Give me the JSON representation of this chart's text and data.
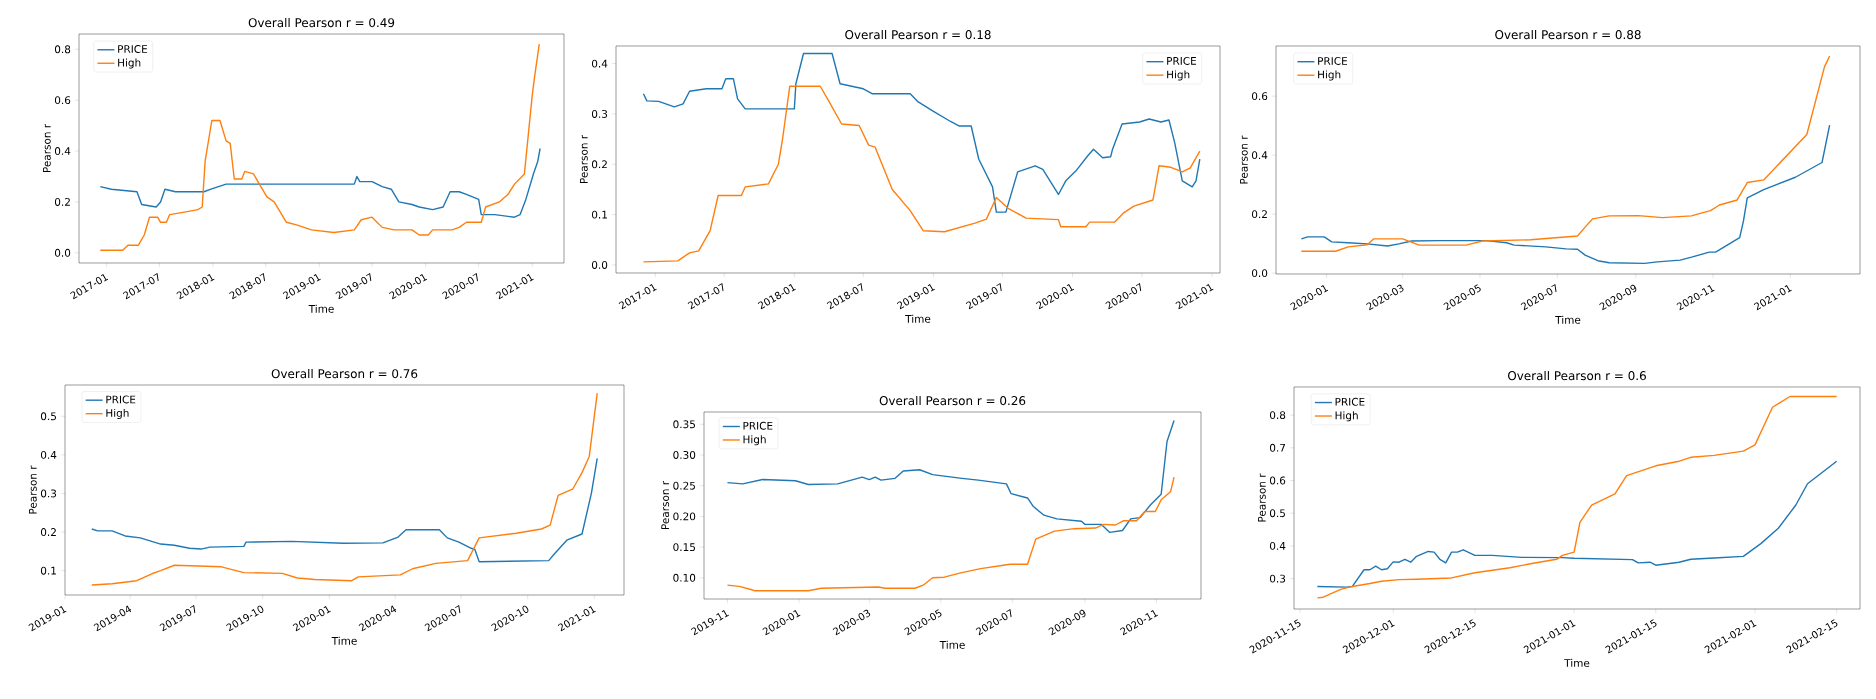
{
  "chart_data": [
    {
      "type": "line",
      "title": "Overall Pearson r = 0.49",
      "xlabel": "Time",
      "ylabel": "Pearson r",
      "legend": "top left",
      "xlim": [
        "2016-09-28",
        "2021-04-20"
      ],
      "ylim": [
        -0.04,
        0.86
      ],
      "xticks": [
        "2017-01",
        "2017-07",
        "2018-01",
        "2018-07",
        "2019-01",
        "2019-07",
        "2020-01",
        "2020-07",
        "2021-01"
      ],
      "yticks": [
        {
          "value": 0,
          "label": "0.0"
        },
        0.2,
        0.4,
        0.6,
        0.8
      ],
      "series": [
        {
          "name": "PRICE",
          "color": "#1f77b4",
          "x": [
            "2016-12-10",
            "2017-01-17",
            "2017-04-15",
            "2017-05-01",
            "2017-06-20",
            "2017-07-05",
            "2017-07-20",
            "2017-08-25",
            "2017-12-01",
            "2017-12-25",
            "2018-02-15",
            "2018-04-05",
            "2018-06-01",
            "2019-05-01",
            "2019-05-10",
            "2019-05-20",
            "2019-07-01",
            "2019-08-05",
            "2019-09-05",
            "2019-10-01",
            "2019-11-15",
            "2019-12-10",
            "2020-01-25",
            "2020-03-01",
            "2020-03-25",
            "2020-04-25",
            "2020-05-20",
            "2020-07-01",
            "2020-07-10",
            "2020-08-25",
            "2020-11-01",
            "2020-11-20",
            "2020-12-10",
            "2021-01-05",
            "2021-01-20",
            "2021-01-28"
          ],
          "values": [
            0.26,
            0.25,
            0.24,
            0.19,
            0.18,
            0.2,
            0.25,
            0.24,
            0.24,
            0.25,
            0.27,
            0.27,
            0.27,
            0.27,
            0.3,
            0.28,
            0.28,
            0.26,
            0.25,
            0.2,
            0.19,
            0.18,
            0.17,
            0.18,
            0.24,
            0.24,
            0.23,
            0.21,
            0.15,
            0.15,
            0.14,
            0.15,
            0.21,
            0.31,
            0.36,
            0.41
          ]
        },
        {
          "name": "High",
          "color": "#ff7f0e",
          "x": [
            "2016-12-10",
            "2017-02-25",
            "2017-03-15",
            "2017-04-20",
            "2017-05-10",
            "2017-05-28",
            "2017-06-25",
            "2017-07-05",
            "2017-07-25",
            "2017-08-05",
            "2017-09-25",
            "2017-11-10",
            "2017-11-25",
            "2017-12-05",
            "2017-12-28",
            "2018-01-25",
            "2018-02-15",
            "2018-03-01",
            "2018-03-15",
            "2018-04-10",
            "2018-04-20",
            "2018-05-20",
            "2018-07-05",
            "2018-07-30",
            "2018-09-10",
            "2018-10-15",
            "2018-12-05",
            "2019-02-20",
            "2019-05-01",
            "2019-05-25",
            "2019-07-01",
            "2019-08-05",
            "2019-09-15",
            "2019-11-15",
            "2019-12-10",
            "2020-01-10",
            "2020-01-25",
            "2020-04-01",
            "2020-04-25",
            "2020-05-20",
            "2020-07-10",
            "2020-07-25",
            "2020-09-10",
            "2020-10-10",
            "2020-11-01",
            "2020-12-05",
            "2021-01-01",
            "2021-01-10",
            "2021-01-25"
          ],
          "values": [
            0.01,
            0.01,
            0.03,
            0.03,
            0.07,
            0.14,
            0.14,
            0.12,
            0.12,
            0.15,
            0.16,
            0.17,
            0.18,
            0.36,
            0.52,
            0.52,
            0.44,
            0.43,
            0.29,
            0.29,
            0.32,
            0.31,
            0.22,
            0.2,
            0.12,
            0.11,
            0.09,
            0.08,
            0.09,
            0.13,
            0.14,
            0.1,
            0.09,
            0.09,
            0.07,
            0.07,
            0.09,
            0.09,
            0.1,
            0.12,
            0.12,
            0.18,
            0.2,
            0.23,
            0.27,
            0.31,
            0.62,
            0.7,
            0.82
          ]
        }
      ]
    },
    {
      "type": "line",
      "title": "Overall Pearson r = 0.18",
      "xlabel": "Time",
      "ylabel": "Pearson r",
      "legend": "top right",
      "xlim": [
        "2016-09-20",
        "2021-01-22"
      ],
      "ylim": [
        -0.016,
        0.435
      ],
      "xticks": [
        "2017-01",
        "2017-07",
        "2018-01",
        "2018-07",
        "2019-01",
        "2019-07",
        "2020-01",
        "2020-07",
        "2021-01"
      ],
      "yticks": [
        {
          "value": 0,
          "label": "0.0"
        },
        0.1,
        0.2,
        0.3,
        0.4
      ],
      "series": [
        {
          "name": "PRICE",
          "color": "#1f77b4",
          "x": [
            "2016-12-01",
            "2016-12-10",
            "2017-01-10",
            "2017-02-20",
            "2017-03-15",
            "2017-04-01",
            "2017-05-15",
            "2017-06-25",
            "2017-07-05",
            "2017-07-25",
            "2017-08-05",
            "2017-08-25",
            "2017-12-01",
            "2018-01-01",
            "2018-01-05",
            "2018-01-25",
            "2018-04-10",
            "2018-05-01",
            "2018-07-01",
            "2018-07-25",
            "2018-09-20",
            "2018-11-01",
            "2018-11-20",
            "2019-01-01",
            "2019-02-15",
            "2019-03-10",
            "2019-04-10",
            "2019-04-30",
            "2019-06-05",
            "2019-06-15",
            "2019-07-10",
            "2019-08-10",
            "2019-09-25",
            "2019-10-15",
            "2019-11-25",
            "2019-12-15",
            "2020-01-10",
            "2020-02-10",
            "2020-02-25",
            "2020-03-20",
            "2020-04-10",
            "2020-04-15",
            "2020-05-10",
            "2020-06-25",
            "2020-07-20",
            "2020-08-20",
            "2020-09-10",
            "2020-09-25",
            "2020-10-15",
            "2020-11-10",
            "2020-11-20",
            "2020-11-30"
          ],
          "values": [
            0.34,
            0.326,
            0.325,
            0.314,
            0.32,
            0.345,
            0.35,
            0.35,
            0.37,
            0.37,
            0.33,
            0.31,
            0.31,
            0.31,
            0.36,
            0.42,
            0.42,
            0.36,
            0.35,
            0.34,
            0.34,
            0.34,
            0.325,
            0.305,
            0.285,
            0.276,
            0.276,
            0.21,
            0.155,
            0.105,
            0.105,
            0.185,
            0.197,
            0.19,
            0.14,
            0.168,
            0.187,
            0.217,
            0.23,
            0.213,
            0.215,
            0.23,
            0.28,
            0.284,
            0.29,
            0.284,
            0.288,
            0.243,
            0.167,
            0.155,
            0.167,
            0.21
          ]
        },
        {
          "name": "High",
          "color": "#ff7f0e",
          "x": [
            "2016-12-01",
            "2017-03-01",
            "2017-04-01",
            "2017-04-25",
            "2017-05-25",
            "2017-06-15",
            "2017-08-15",
            "2017-08-25",
            "2017-10-25",
            "2017-11-20",
            "2017-12-01",
            "2017-12-20",
            "2018-03-10",
            "2018-04-01",
            "2018-05-05",
            "2018-06-20",
            "2018-07-15",
            "2018-08-01",
            "2018-09-15",
            "2018-11-01",
            "2018-12-05",
            "2019-01-30",
            "2019-04-20",
            "2019-05-20",
            "2019-06-15",
            "2019-07-15",
            "2019-09-01",
            "2019-11-25",
            "2019-12-01",
            "2020-02-05",
            "2020-02-15",
            "2020-04-20",
            "2020-05-15",
            "2020-06-10",
            "2020-07-30",
            "2020-08-15",
            "2020-09-15",
            "2020-10-15",
            "2020-11-05",
            "2020-11-30"
          ],
          "values": [
            0.006,
            0.008,
            0.024,
            0.028,
            0.068,
            0.138,
            0.138,
            0.155,
            0.161,
            0.2,
            0.25,
            0.355,
            0.355,
            0.326,
            0.28,
            0.277,
            0.238,
            0.234,
            0.15,
            0.108,
            0.068,
            0.066,
            0.083,
            0.091,
            0.134,
            0.113,
            0.093,
            0.09,
            0.076,
            0.076,
            0.085,
            0.085,
            0.104,
            0.117,
            0.129,
            0.197,
            0.194,
            0.185,
            0.193,
            0.226
          ]
        }
      ]
    },
    {
      "type": "line",
      "title": "Overall Pearson r = 0.88",
      "xlabel": "Time",
      "ylabel": "Pearson r",
      "legend": "top left",
      "xlim": [
        "2019-11-22",
        "2021-02-25"
      ],
      "ylim": [
        -0.003,
        0.77
      ],
      "xticks": [
        "2020-01",
        "2020-03",
        "2020-05",
        "2020-07",
        "2020-09",
        "2020-11",
        "2021-01"
      ],
      "yticks": [
        {
          "value": 0,
          "label": "0.0"
        },
        0.2,
        0.4,
        0.6
      ],
      "series": [
        {
          "name": "PRICE",
          "color": "#1f77b4",
          "x": [
            "2019-12-12",
            "2019-12-17",
            "2019-12-30",
            "2020-01-05",
            "2020-01-18",
            "2020-02-02",
            "2020-02-18",
            "2020-02-27",
            "2020-03-08",
            "2020-03-30",
            "2020-05-06",
            "2020-05-22",
            "2020-05-28",
            "2020-06-22",
            "2020-07-08",
            "2020-07-17",
            "2020-07-23",
            "2020-08-02",
            "2020-08-11",
            "2020-09-08",
            "2020-09-18",
            "2020-10-06",
            "2020-10-15",
            "2020-10-29",
            "2020-11-03",
            "2020-11-22",
            "2020-11-25",
            "2020-11-28",
            "2020-12-11",
            "2021-01-05",
            "2021-01-26",
            "2021-02-01"
          ],
          "values": [
            0.116,
            0.123,
            0.123,
            0.106,
            0.103,
            0.099,
            0.092,
            0.099,
            0.109,
            0.11,
            0.11,
            0.103,
            0.095,
            0.089,
            0.082,
            0.081,
            0.061,
            0.042,
            0.035,
            0.033,
            0.038,
            0.044,
            0.054,
            0.071,
            0.071,
            0.12,
            0.177,
            0.255,
            0.283,
            0.325,
            0.375,
            0.502
          ]
        },
        {
          "name": "High",
          "color": "#ff7f0e",
          "x": [
            "2019-12-12",
            "2020-01-08",
            "2020-01-18",
            "2020-02-02",
            "2020-02-07",
            "2020-03-01",
            "2020-03-14",
            "2020-04-20",
            "2020-05-03",
            "2020-06-10",
            "2020-07-17",
            "2020-07-23",
            "2020-07-29",
            "2020-08-11",
            "2020-09-03",
            "2020-09-22",
            "2020-10-15",
            "2020-10-24",
            "2020-10-30",
            "2020-11-06",
            "2020-11-20",
            "2020-11-28",
            "2020-12-11",
            "2021-01-14",
            "2021-01-28",
            "2021-02-01"
          ],
          "values": [
            0.074,
            0.074,
            0.089,
            0.096,
            0.116,
            0.116,
            0.095,
            0.095,
            0.109,
            0.113,
            0.126,
            0.156,
            0.184,
            0.194,
            0.195,
            0.188,
            0.194,
            0.205,
            0.212,
            0.231,
            0.248,
            0.307,
            0.316,
            0.47,
            0.7,
            0.736
          ]
        }
      ]
    },
    {
      "type": "line",
      "title": "Overall Pearson r = 0.76",
      "xlabel": "Time",
      "ylabel": "Pearson r",
      "legend": "top left",
      "xlim": [
        "2019-01-01",
        "2021-02-11"
      ],
      "ylim": [
        0.037,
        0.581
      ],
      "xticks": [
        "2019-01",
        "2019-04",
        "2019-07",
        "2019-10",
        "2020-01",
        "2020-04",
        "2020-07",
        "2020-10",
        "2021-01"
      ],
      "yticks": [
        0.1,
        0.2,
        0.3,
        0.4,
        0.5
      ],
      "series": [
        {
          "name": "PRICE",
          "color": "#1f77b4",
          "x": [
            "2019-02-07",
            "2019-02-15",
            "2019-03-07",
            "2019-03-25",
            "2019-04-15",
            "2019-05-13",
            "2019-06-01",
            "2019-06-22",
            "2019-07-08",
            "2019-07-20",
            "2019-09-05",
            "2019-09-08",
            "2019-11-10",
            "2020-01-20",
            "2020-03-15",
            "2020-04-05",
            "2020-04-16",
            "2020-06-01",
            "2020-06-12",
            "2020-06-28",
            "2020-07-15",
            "2020-07-20",
            "2020-07-26",
            "2020-10-30",
            "2020-11-07",
            "2020-11-24",
            "2020-12-15",
            "2020-12-28",
            "2021-01-05"
          ],
          "values": [
            0.208,
            0.203,
            0.203,
            0.19,
            0.185,
            0.169,
            0.166,
            0.158,
            0.156,
            0.161,
            0.163,
            0.174,
            0.176,
            0.171,
            0.172,
            0.187,
            0.206,
            0.206,
            0.185,
            0.174,
            0.158,
            0.155,
            0.123,
            0.126,
            0.144,
            0.179,
            0.195,
            0.301,
            0.391
          ]
        },
        {
          "name": "High",
          "color": "#ff7f0e",
          "x": [
            "2019-02-07",
            "2019-03-07",
            "2019-04-10",
            "2019-05-01",
            "2019-05-13",
            "2019-06-01",
            "2019-08-05",
            "2019-09-05",
            "2019-10-28",
            "2019-11-18",
            "2019-12-12",
            "2020-02-01",
            "2020-02-10",
            "2020-04-08",
            "2020-04-25",
            "2020-05-27",
            "2020-07-10",
            "2020-07-26",
            "2020-09-15",
            "2020-10-20",
            "2020-11-01",
            "2020-11-12",
            "2020-12-02",
            "2020-12-15",
            "2020-12-25",
            "2021-01-05"
          ],
          "values": [
            0.063,
            0.066,
            0.074,
            0.092,
            0.1,
            0.114,
            0.11,
            0.095,
            0.093,
            0.081,
            0.077,
            0.074,
            0.084,
            0.089,
            0.105,
            0.119,
            0.126,
            0.185,
            0.197,
            0.208,
            0.218,
            0.295,
            0.311,
            0.354,
            0.396,
            0.56
          ]
        }
      ]
    },
    {
      "type": "line",
      "title": "Overall Pearson r = 0.26",
      "xlabel": "Time",
      "ylabel": "Pearson r",
      "legend": "top left",
      "xlim": [
        "2019-10-12",
        "2020-12-09"
      ],
      "ylim": [
        0.0655,
        0.37
      ],
      "xticks": [
        "2019-11",
        "2020-01",
        "2020-03",
        "2020-05",
        "2020-07",
        "2020-09",
        "2020-11"
      ],
      "yticks": [
        {
          "value": 0.1,
          "label": "0.10"
        },
        0.15,
        {
          "value": 0.2,
          "label": "0.20"
        },
        0.25,
        {
          "value": 0.3,
          "label": "0.30"
        },
        0.35
      ],
      "series": [
        {
          "name": "PRICE",
          "color": "#1f77b4",
          "x": [
            "2019-11-01",
            "2019-11-14",
            "2019-12-01",
            "2019-12-29",
            "2020-01-09",
            "2020-02-03",
            "2020-02-24",
            "2020-03-01",
            "2020-03-06",
            "2020-03-11",
            "2020-03-23",
            "2020-03-30",
            "2020-04-13",
            "2020-04-24",
            "2020-05-19",
            "2020-06-02",
            "2020-06-26",
            "2020-06-30",
            "2020-07-14",
            "2020-07-19",
            "2020-07-28",
            "2020-08-08",
            "2020-08-29",
            "2020-09-01",
            "2020-09-15",
            "2020-09-22",
            "2020-10-03",
            "2020-10-10",
            "2020-10-18",
            "2020-10-27",
            "2020-11-05",
            "2020-11-10",
            "2020-11-16"
          ],
          "values": [
            0.255,
            0.253,
            0.26,
            0.258,
            0.252,
            0.253,
            0.264,
            0.26,
            0.264,
            0.259,
            0.262,
            0.274,
            0.276,
            0.268,
            0.262,
            0.259,
            0.253,
            0.237,
            0.23,
            0.216,
            0.202,
            0.196,
            0.192,
            0.187,
            0.187,
            0.174,
            0.177,
            0.196,
            0.198,
            0.219,
            0.236,
            0.322,
            0.356
          ]
        },
        {
          "name": "High",
          "color": "#ff7f0e",
          "x": [
            "2019-11-01",
            "2019-11-11",
            "2019-11-21",
            "2019-11-24",
            "2020-01-09",
            "2020-01-20",
            "2020-03-09",
            "2020-03-14",
            "2020-04-09",
            "2020-04-16",
            "2020-04-24",
            "2020-05-04",
            "2020-05-18",
            "2020-06-04",
            "2020-06-22",
            "2020-06-29",
            "2020-07-14",
            "2020-07-21",
            "2020-08-06",
            "2020-08-23",
            "2020-09-10",
            "2020-09-17",
            "2020-09-27",
            "2020-10-04",
            "2020-10-15",
            "2020-10-22",
            "2020-10-31",
            "2020-11-05",
            "2020-11-13",
            "2020-11-16"
          ],
          "values": [
            0.088,
            0.086,
            0.081,
            0.079,
            0.079,
            0.083,
            0.085,
            0.083,
            0.083,
            0.088,
            0.1,
            0.101,
            0.108,
            0.115,
            0.12,
            0.122,
            0.122,
            0.163,
            0.176,
            0.18,
            0.181,
            0.187,
            0.186,
            0.193,
            0.193,
            0.208,
            0.208,
            0.227,
            0.24,
            0.264
          ]
        }
      ]
    },
    {
      "type": "line",
      "title": "Overall Pearson r = 0.6",
      "xlabel": "Time",
      "ylabel": "Pearson r",
      "legend": "top left",
      "xlim": [
        "2020-11-14",
        "2021-02-19"
      ],
      "ylim": [
        0.207,
        0.886
      ],
      "xticks": [
        "2020-11-15",
        "2020-12-01",
        "2020-12-15",
        "2021-01-01",
        "2021-01-15",
        "2021-02-01",
        "2021-02-15"
      ],
      "yticks": [
        0.3,
        0.4,
        0.5,
        0.6,
        0.7,
        0.8
      ],
      "series": [
        {
          "name": "PRICE",
          "color": "#1f77b4",
          "x": [
            "2020-11-18",
            "2020-11-23",
            "2020-11-24",
            "2020-11-26",
            "2020-11-27",
            "2020-11-28",
            "2020-11-29",
            "2020-11-30",
            "2020-12-01",
            "2020-12-02",
            "2020-12-03",
            "2020-12-04",
            "2020-12-05",
            "2020-12-07",
            "2020-12-08",
            "2020-12-09",
            "2020-12-10",
            "2020-12-11",
            "2020-12-12",
            "2020-12-13",
            "2020-12-15",
            "2020-12-18",
            "2020-12-23",
            "2020-12-30",
            "2021-01-01",
            "2021-01-11",
            "2021-01-12",
            "2021-01-14",
            "2021-01-15",
            "2021-01-19",
            "2021-01-21",
            "2021-01-25",
            "2021-01-30",
            "2021-02-02",
            "2021-02-05",
            "2021-02-08",
            "2021-02-10",
            "2021-02-15"
          ],
          "values": [
            0.276,
            0.274,
            0.276,
            0.327,
            0.327,
            0.338,
            0.327,
            0.33,
            0.351,
            0.35,
            0.359,
            0.35,
            0.368,
            0.383,
            0.381,
            0.359,
            0.348,
            0.381,
            0.381,
            0.388,
            0.371,
            0.371,
            0.365,
            0.364,
            0.362,
            0.358,
            0.348,
            0.35,
            0.341,
            0.35,
            0.359,
            0.363,
            0.368,
            0.407,
            0.454,
            0.525,
            0.59,
            0.659
          ]
        },
        {
          "name": "High",
          "color": "#ff7f0e",
          "x": [
            "2020-11-18",
            "2020-11-19",
            "2020-11-22",
            "2020-11-24",
            "2020-11-27",
            "2020-11-29",
            "2020-12-02",
            "2020-12-05",
            "2020-12-11",
            "2020-12-15",
            "2020-12-21",
            "2020-12-25",
            "2020-12-29",
            "2020-12-30",
            "2021-01-01",
            "2021-01-02",
            "2021-01-04",
            "2021-01-08",
            "2021-01-10",
            "2021-01-15",
            "2021-01-19",
            "2021-01-21",
            "2021-01-25",
            "2021-01-30",
            "2021-02-01",
            "2021-02-04",
            "2021-02-07",
            "2021-02-15"
          ],
          "values": [
            0.241,
            0.243,
            0.267,
            0.276,
            0.285,
            0.292,
            0.297,
            0.298,
            0.302,
            0.318,
            0.333,
            0.347,
            0.359,
            0.371,
            0.381,
            0.472,
            0.525,
            0.559,
            0.615,
            0.645,
            0.659,
            0.671,
            0.677,
            0.69,
            0.709,
            0.824,
            0.857,
            0.857
          ]
        }
      ]
    }
  ]
}
